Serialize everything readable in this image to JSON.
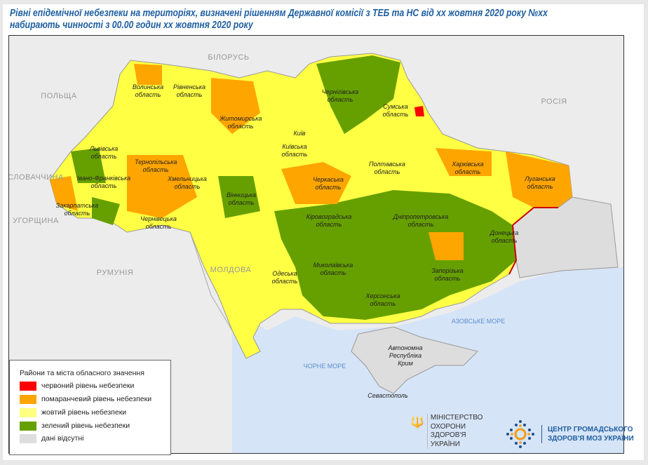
{
  "title": {
    "line1": "Рівні епідемічної небезпеки на територіях, визначені рішенням Державної комісії з ТЕБ та НС від хх жовтня 2020 року №хх",
    "line2": "набирають чинності з 00.00 годин хх жовтня 2020 року"
  },
  "map": {
    "countries": [
      "БІЛОРУСЬ",
      "РОСІЯ",
      "ПОЛЬЩА",
      "СЛОВАЧЧИНА",
      "УГОРЩИНА",
      "РУМУНІЯ",
      "МОЛДОВА"
    ],
    "seas": [
      "ЧОРНЕ МОРЕ",
      "АЗОВСЬКЕ МОРЕ"
    ],
    "regions": [
      "Волинська область",
      "Рівненська область",
      "Житомирська область",
      "Чернігівська область",
      "Сумська область",
      "Харківська область",
      "Луганська область",
      "Львівська область",
      "Тернопільська область",
      "Хмельницька область",
      "Київ",
      "Київська область",
      "Полтавська область",
      "Черкаська область",
      "Івано-Франківська область",
      "Закарпатська область",
      "Чернівецька область",
      "Вінницька область",
      "Кіровоградська область",
      "Дніпропетровська область",
      "Донецька область",
      "Одеська область",
      "Миколаївська область",
      "Запорізька область",
      "Херсонська область",
      "Автономна Республіка Крим",
      "Севастополь"
    ],
    "colors": {
      "red": "#ff0000",
      "orange": "#ffa500",
      "yellow": "#ffff66",
      "green": "#66a000",
      "nodata": "#dddddd",
      "sea": "#d6e4f7",
      "border": "#cc0000"
    }
  },
  "legend": {
    "title": "Райони та міста обласного значення",
    "items": [
      {
        "label": "червоний рівень небезпеки",
        "color": "#ff0000"
      },
      {
        "label": "помаранчевий рівень небезпеки",
        "color": "#ffa500"
      },
      {
        "label": "жовтий рівень небезпеки",
        "color": "#ffff80"
      },
      {
        "label": "зелений рівень небезпеки",
        "color": "#66a000"
      },
      {
        "label": "дані відсутні",
        "color": "#dddddd"
      }
    ]
  },
  "logos": {
    "moz": [
      "МІНІСТЕРСТВО",
      "ОХОРОНИ",
      "ЗДОРОВ'Я",
      "УКРАЇНИ"
    ],
    "cgz": [
      "ЦЕНТР ГРОМАДСЬКОГО",
      "ЗДОРОВ'Я МОЗ УКРАЇНИ"
    ]
  }
}
